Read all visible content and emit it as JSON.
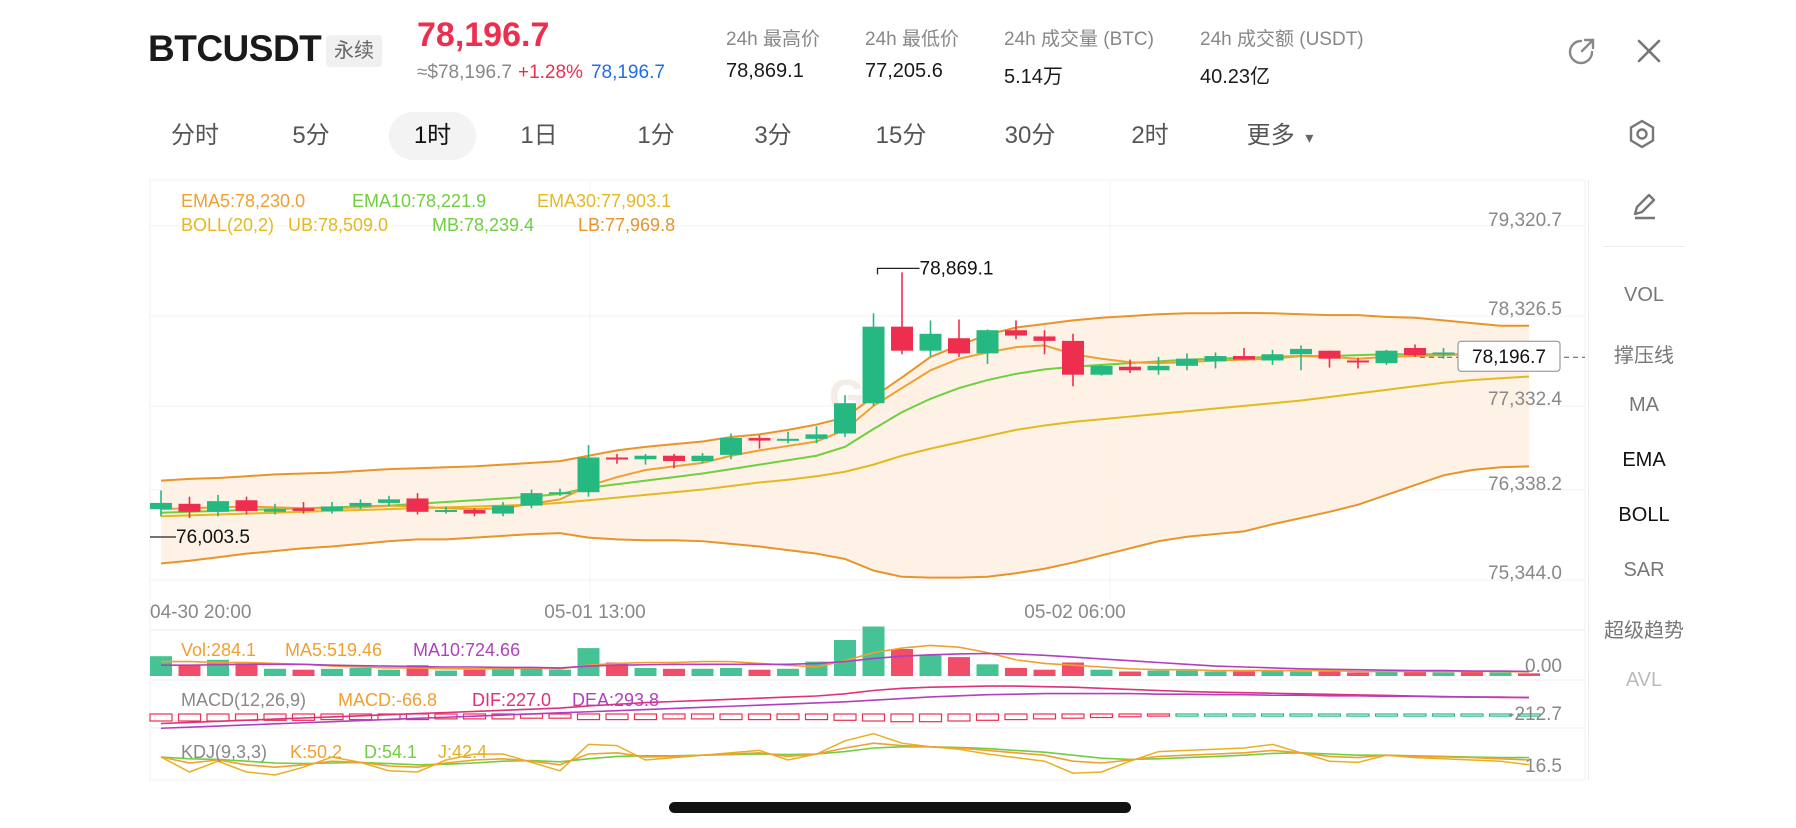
{
  "header": {
    "symbol": "BTCUSDT",
    "contract_type": "永续",
    "last_price": "78,196.7",
    "approx_usd": "≈$78,196.7",
    "change_pct": "+1.28%",
    "mark_price": "78,196.7",
    "stats": [
      {
        "label": "24h 最高价",
        "value": "78,869.1"
      },
      {
        "label": "24h 最低价",
        "value": "77,205.6"
      },
      {
        "label": "24h 成交量 (BTC)",
        "value": "5.14万"
      },
      {
        "label": "24h 成交额 (USDT)",
        "value": "40.23亿"
      }
    ],
    "icons": [
      "open-external-icon",
      "close-icon"
    ]
  },
  "intervals": {
    "tabs": [
      "分时",
      "5分",
      "1时",
      "1日",
      "1分",
      "3分",
      "15分",
      "30分",
      "2时",
      "更多"
    ],
    "active": "1时",
    "more_caret": "▾"
  },
  "side_tools": {
    "items": [
      "VOL",
      "撑压线",
      "MA",
      "EMA",
      "BOLL",
      "SAR",
      "超级趋势",
      "AVL"
    ],
    "active": [
      "EMA",
      "BOLL"
    ],
    "disabled": [
      "AVL"
    ]
  },
  "colors": {
    "up": "#26b881",
    "down": "#ee2e4f",
    "ema5": "#f0a030",
    "ema10": "#6fcf3f",
    "ema30": "#e6b820",
    "boll_band": "#e8942a",
    "boll_fill": "#fdf0e0",
    "ma10_vol": "#b040c0",
    "accent_blue": "#1f6fe0"
  },
  "chart_data": {
    "type": "candlestick",
    "price_axis": {
      "ticks": [
        "79,320.7",
        "78,326.5",
        "77,332.4",
        "76,338.2",
        "75,344.0"
      ],
      "range": [
        75344.0,
        79320.7
      ]
    },
    "time_axis": {
      "ticks": [
        "04-30 20:00",
        "05-01 13:00",
        "05-02 06:00"
      ]
    },
    "last_price_label": "78,196.7",
    "high_marker": "78,869.1",
    "low_marker": "76,003.5",
    "watermark": "Gate",
    "legend": {
      "ema": [
        "EMA5:78,230.0",
        "EMA10:78,221.9",
        "EMA30:77,903.1"
      ],
      "boll": [
        "BOLL(20,2)",
        "UB:78,509.0",
        "MB:78,239.4",
        "LB:77,969.8"
      ]
    },
    "candles": [
      [
        76140,
        76210,
        76350,
        76060
      ],
      [
        76200,
        76110,
        76280,
        76040
      ],
      [
        76110,
        76230,
        76300,
        76060
      ],
      [
        76240,
        76120,
        76280,
        76080
      ],
      [
        76110,
        76140,
        76200,
        76080
      ],
      [
        76150,
        76120,
        76220,
        76090
      ],
      [
        76120,
        76170,
        76220,
        76090
      ],
      [
        76170,
        76210,
        76250,
        76140
      ],
      [
        76210,
        76250,
        76290,
        76170
      ],
      [
        76260,
        76110,
        76320,
        76080
      ],
      [
        76110,
        76130,
        76170,
        76090
      ],
      [
        76130,
        76090,
        76150,
        76060
      ],
      [
        76090,
        76180,
        76220,
        76060
      ],
      [
        76180,
        76320,
        76360,
        76150
      ],
      [
        76320,
        76330,
        76370,
        76290
      ],
      [
        76330,
        76720,
        76860,
        76280
      ],
      [
        76720,
        76700,
        76760,
        76650
      ],
      [
        76700,
        76740,
        76760,
        76640
      ],
      [
        76740,
        76680,
        76760,
        76600
      ],
      [
        76680,
        76740,
        76770,
        76660
      ],
      [
        76750,
        76940,
        76990,
        76700
      ],
      [
        76940,
        76910,
        76970,
        76820
      ],
      [
        76910,
        76930,
        77010,
        76880
      ],
      [
        76930,
        76980,
        77070,
        76880
      ],
      [
        76990,
        77330,
        77420,
        76950
      ],
      [
        77330,
        78190,
        78340,
        77300
      ],
      [
        78190,
        77920,
        78800,
        77880
      ],
      [
        77920,
        78110,
        78260,
        77850
      ],
      [
        78060,
        77890,
        78270,
        77850
      ],
      [
        77890,
        78150,
        78160,
        77770
      ],
      [
        78150,
        78090,
        78260,
        78050
      ],
      [
        78080,
        78030,
        78150,
        77880
      ],
      [
        78030,
        77650,
        78110,
        77520
      ],
      [
        77650,
        77750,
        77760,
        77640
      ],
      [
        77740,
        77700,
        77820,
        77670
      ],
      [
        77700,
        77750,
        77850,
        77650
      ],
      [
        77750,
        77830,
        77890,
        77700
      ],
      [
        77800,
        77860,
        77900,
        77720
      ],
      [
        77860,
        77820,
        77950,
        77820
      ],
      [
        77810,
        77880,
        77930,
        77760
      ],
      [
        77880,
        77940,
        77980,
        77700
      ],
      [
        77920,
        77830,
        77920,
        77730
      ],
      [
        77810,
        77790,
        77840,
        77720
      ],
      [
        77780,
        77920,
        77930,
        77760
      ],
      [
        77950,
        77870,
        77990,
        77850
      ],
      [
        77880,
        77900,
        77950,
        77830
      ],
      [
        77900,
        77880,
        78000,
        77880
      ],
      [
        77880,
        77880,
        77890,
        77860
      ],
      [
        77900,
        77870,
        77900,
        77850
      ]
    ],
    "overlays": {
      "boll_ub": [
        76460,
        76480,
        76490,
        76510,
        76530,
        76540,
        76550,
        76570,
        76590,
        76600,
        76610,
        76620,
        76640,
        76660,
        76680,
        76740,
        76800,
        76840,
        76870,
        76900,
        76950,
        76980,
        77030,
        77090,
        77170,
        77400,
        77620,
        77850,
        77980,
        78100,
        78180,
        78220,
        78260,
        78290,
        78310,
        78330,
        78340,
        78340,
        78345,
        78340,
        78330,
        78320,
        78320,
        78300,
        78290,
        78260,
        78230,
        78200,
        78200
      ],
      "boll_lb": [
        75530,
        75560,
        75600,
        75640,
        75670,
        75700,
        75720,
        75750,
        75780,
        75800,
        75800,
        75820,
        75840,
        75860,
        75870,
        75820,
        75800,
        75790,
        75790,
        75780,
        75750,
        75720,
        75680,
        75640,
        75580,
        75450,
        75380,
        75370,
        75370,
        75380,
        75420,
        75470,
        75540,
        75620,
        75700,
        75780,
        75830,
        75860,
        75890,
        75970,
        76040,
        76110,
        76190,
        76300,
        76410,
        76520,
        76580,
        76610,
        76620
      ],
      "ema10": [
        76100,
        76110,
        76120,
        76130,
        76140,
        76150,
        76160,
        76170,
        76180,
        76200,
        76220,
        76240,
        76260,
        76280,
        76310,
        76380,
        76420,
        76460,
        76500,
        76540,
        76590,
        76640,
        76690,
        76740,
        76840,
        77040,
        77230,
        77380,
        77500,
        77590,
        77660,
        77710,
        77740,
        77760,
        77780,
        77800,
        77820,
        77830,
        77840,
        77850,
        77860,
        77860,
        77870,
        77880,
        77880,
        77880,
        77880,
        77890,
        77880
      ],
      "ema5": [
        76140,
        76150,
        76160,
        76170,
        76160,
        76150,
        76150,
        76160,
        76180,
        76170,
        76150,
        76140,
        76150,
        76200,
        76250,
        76400,
        76500,
        76580,
        76620,
        76660,
        76740,
        76800,
        76850,
        76900,
        77030,
        77300,
        77500,
        77700,
        77830,
        77900,
        77960,
        77980,
        77880,
        77830,
        77790,
        77780,
        77790,
        77810,
        77820,
        77830,
        77860,
        77850,
        77830,
        77850,
        77860,
        77870,
        77880,
        77880,
        77880
      ],
      "ema30": [
        76060,
        76070,
        76080,
        76090,
        76100,
        76110,
        76120,
        76130,
        76140,
        76150,
        76160,
        76170,
        76180,
        76190,
        76210,
        76240,
        76270,
        76300,
        76330,
        76360,
        76400,
        76440,
        76470,
        76510,
        76560,
        76640,
        76740,
        76820,
        76890,
        76960,
        77030,
        77080,
        77120,
        77150,
        77180,
        77210,
        77240,
        77270,
        77300,
        77330,
        77360,
        77400,
        77440,
        77480,
        77520,
        77560,
        77590,
        77610,
        77630
      ]
    },
    "volume": {
      "legend": [
        "Vol:284.1",
        "MA5:519.46",
        "MA10:724.66"
      ],
      "axis_label": "0.00",
      "values": [
        2.2,
        1.2,
        1.8,
        1.4,
        0.8,
        0.7,
        0.8,
        0.9,
        0.7,
        1.2,
        0.6,
        0.7,
        0.8,
        0.9,
        0.7,
        3.1,
        1.5,
        0.9,
        0.8,
        0.8,
        0.9,
        0.7,
        0.8,
        1.6,
        4.0,
        5.5,
        3.0,
        2.3,
        2.1,
        1.3,
        0.9,
        0.7,
        1.5,
        0.7,
        0.5,
        0.6,
        0.6,
        0.5,
        0.5,
        0.6,
        0.5,
        0.5,
        0.4,
        0.6,
        0.5,
        0.4,
        0.5,
        0.4,
        0.3
      ],
      "ma5": [
        1.6,
        1.6,
        1.5,
        1.5,
        1.4,
        1.3,
        1.1,
        1.0,
        0.9,
        0.9,
        0.8,
        0.8,
        0.8,
        0.9,
        0.8,
        1.2,
        1.4,
        1.5,
        1.5,
        1.6,
        1.6,
        1.4,
        1.2,
        1.0,
        1.7,
        2.6,
        3.1,
        3.4,
        3.2,
        2.6,
        1.8,
        1.4,
        1.2,
        1.0,
        0.8,
        0.7,
        0.7,
        0.6,
        0.6,
        0.6,
        0.6,
        0.6,
        0.5,
        0.5,
        0.5,
        0.5,
        0.5,
        0.5,
        0.45
      ],
      "ma10": [
        1.2,
        1.2,
        1.25,
        1.3,
        1.3,
        1.3,
        1.2,
        1.15,
        1.1,
        1.05,
        1.0,
        1.0,
        0.95,
        0.95,
        0.9,
        1.1,
        1.2,
        1.25,
        1.3,
        1.3,
        1.3,
        1.3,
        1.3,
        1.4,
        1.6,
        1.95,
        2.2,
        2.35,
        2.45,
        2.5,
        2.45,
        2.3,
        2.1,
        1.9,
        1.7,
        1.5,
        1.3,
        1.1,
        1.0,
        0.9,
        0.8,
        0.75,
        0.7,
        0.65,
        0.6,
        0.6,
        0.55,
        0.55,
        0.5
      ]
    },
    "macd": {
      "legend": [
        "MACD(12,26,9)",
        "MACD:-66.8",
        "DIF:227.0",
        "DEA:293.8"
      ],
      "axis_label": "-212.7",
      "hist": [
        -10,
        -10,
        -10,
        -9,
        -9,
        -9,
        -8,
        -8,
        -8,
        -8,
        -7,
        -7,
        -7,
        -6,
        -6,
        -8,
        -8,
        -8,
        -7,
        -7,
        -8,
        -8,
        -8,
        -8,
        -9,
        -10,
        -11,
        -11,
        -10,
        -9,
        -8,
        -7,
        -6,
        -5,
        -4,
        -3,
        -3,
        -3,
        -3,
        -3,
        -3,
        -3,
        -3,
        -3,
        -3,
        -3,
        -3,
        -3,
        -3
      ],
      "dif": [
        -30,
        -28,
        -26,
        -24,
        -22,
        -20,
        -18,
        -16,
        -14,
        -12,
        -10,
        -8,
        -6,
        -4,
        -2,
        2,
        5,
        8,
        10,
        12,
        14,
        16,
        18,
        20,
        24,
        30,
        34,
        36,
        37,
        38,
        38,
        37,
        36,
        34,
        32,
        30,
        28,
        27,
        26,
        25,
        24,
        23,
        22,
        21,
        20,
        19,
        18,
        18,
        17
      ],
      "dea": [
        -35,
        -33,
        -31,
        -29,
        -27,
        -25,
        -23,
        -21,
        -19,
        -17,
        -15,
        -13,
        -11,
        -9,
        -7,
        -5,
        -3,
        -1,
        1,
        3,
        5,
        7,
        9,
        11,
        13,
        16,
        19,
        22,
        24,
        26,
        27,
        28,
        28,
        28,
        28,
        27,
        27,
        26,
        26,
        25,
        25,
        24,
        24,
        23,
        23,
        22,
        22,
        21,
        21
      ]
    },
    "kdj": {
      "legend": [
        "KDJ(9,3,3)",
        "K:50.2",
        "D:54.1",
        "J:42.4"
      ],
      "axis_label": "16.5",
      "k": [
        55,
        45,
        50,
        42,
        38,
        42,
        48,
        46,
        40,
        38,
        45,
        50,
        52,
        48,
        42,
        60,
        62,
        55,
        56,
        58,
        60,
        62,
        56,
        60,
        70,
        78,
        74,
        72,
        70,
        66,
        62,
        58,
        48,
        45,
        50,
        56,
        58,
        60,
        62,
        66,
        62,
        56,
        54,
        58,
        56,
        55,
        54,
        52,
        50
      ],
      "d": [
        55,
        52,
        51,
        48,
        45,
        44,
        45,
        46,
        44,
        42,
        43,
        45,
        48,
        49,
        47,
        52,
        56,
        57,
        57,
        58,
        59,
        60,
        59,
        60,
        64,
        70,
        72,
        72,
        71,
        69,
        66,
        63,
        58,
        53,
        51,
        52,
        54,
        56,
        58,
        61,
        62,
        60,
        58,
        58,
        57,
        56,
        55,
        54,
        54
      ],
      "j": [
        55,
        30,
        48,
        30,
        25,
        38,
        55,
        46,
        32,
        30,
        50,
        60,
        60,
        46,
        32,
        76,
        74,
        50,
        54,
        58,
        62,
        66,
        50,
        60,
        82,
        94,
        78,
        72,
        68,
        60,
        54,
        48,
        28,
        30,
        48,
        64,
        66,
        68,
        70,
        76,
        62,
        48,
        46,
        58,
        54,
        52,
        50,
        48,
        42
      ]
    }
  }
}
